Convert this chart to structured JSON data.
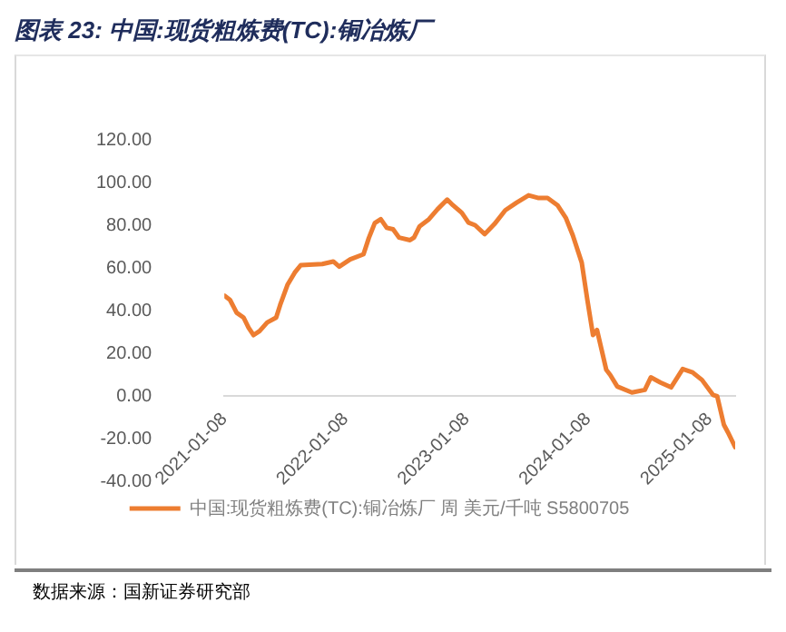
{
  "chart_data": {
    "type": "line",
    "title": "图表 23:  中国:现货粗炼费(TC):铜冶炼厂",
    "annotations": [
      "数据来源：国新证券研究部"
    ],
    "x": [
      "2021-01-08",
      "2021-01-25",
      "2021-02-14",
      "2021-03-07",
      "2021-03-22",
      "2021-04-06",
      "2021-04-24",
      "2021-05-17",
      "2021-06-13",
      "2021-06-25",
      "2021-07-17",
      "2021-08-08",
      "2021-08-26",
      "2021-10-30",
      "2021-12-02",
      "2021-12-20",
      "2022-01-22",
      "2022-03-03",
      "2022-03-19",
      "2022-04-06",
      "2022-04-24",
      "2022-05-12",
      "2022-05-31",
      "2022-06-18",
      "2022-07-21",
      "2022-08-02",
      "2022-08-19",
      "2022-09-16",
      "2022-10-12",
      "2022-11-10",
      "2022-11-27",
      "2022-12-24",
      "2023-01-13",
      "2023-02-02",
      "2023-03-03",
      "2023-04-01",
      "2023-05-04",
      "2023-06-06",
      "2023-07-13",
      "2023-08-10",
      "2023-09-08",
      "2023-10-08",
      "2023-11-02",
      "2023-11-23",
      "2023-12-20",
      "2024-01-06",
      "2024-01-23",
      "2024-02-04",
      "2024-03-03",
      "2024-03-15",
      "2024-04-05",
      "2024-05-19",
      "2024-06-27",
      "2024-07-15",
      "2024-08-13",
      "2024-09-14",
      "2024-10-19",
      "2024-11-18",
      "2024-12-16",
      "2025-01-18",
      "2025-01-31",
      "2025-02-20",
      "2025-03-04",
      "2025-03-26"
    ],
    "series": [
      {
        "name": "中国:现货粗炼费(TC):铜冶炼厂 周 美元/千吨 S5800705",
        "color": "#ed7d31",
        "values": [
          47,
          45,
          39,
          36.7,
          32,
          28.5,
          30.4,
          34.4,
          36.7,
          42.6,
          52,
          57.8,
          61.3,
          61.8,
          63,
          60.6,
          64,
          66.4,
          74,
          81,
          82.8,
          78.8,
          78.1,
          74.2,
          73,
          74.2,
          79.5,
          82.8,
          87.5,
          92,
          89.4,
          85.8,
          81.2,
          80,
          75.8,
          80.5,
          87,
          90.5,
          94,
          92.8,
          92.8,
          89.4,
          83.5,
          75.3,
          62.5,
          44.9,
          28.5,
          30.9,
          12.2,
          9.8,
          4.4,
          1.6,
          2.8,
          8.7,
          6.3,
          4,
          12.6,
          11,
          7.5,
          0.5,
          -0.2,
          -13.5,
          -17,
          -24
        ]
      }
    ],
    "ylim": [
      -40,
      120
    ],
    "yticks": [
      {
        "value": -40,
        "label": "-40.00"
      },
      {
        "value": -20,
        "label": "-20.00"
      },
      {
        "value": 0,
        "label": "0.00"
      },
      {
        "value": 20,
        "label": "20.00"
      },
      {
        "value": 40,
        "label": "40.00"
      },
      {
        "value": 60,
        "label": "60.00"
      },
      {
        "value": 80,
        "label": "80.00"
      },
      {
        "value": 100,
        "label": "100.00"
      },
      {
        "value": 120,
        "label": "120.00"
      }
    ],
    "xlim": [
      "2021-01-08",
      "2025-03-26"
    ],
    "xticks": [
      "2021-01-08",
      "2022-01-08",
      "2023-01-08",
      "2024-01-08",
      "2025-01-08"
    ],
    "grid": false,
    "legend": "bottom",
    "marker": "none",
    "line_style": "solid"
  }
}
